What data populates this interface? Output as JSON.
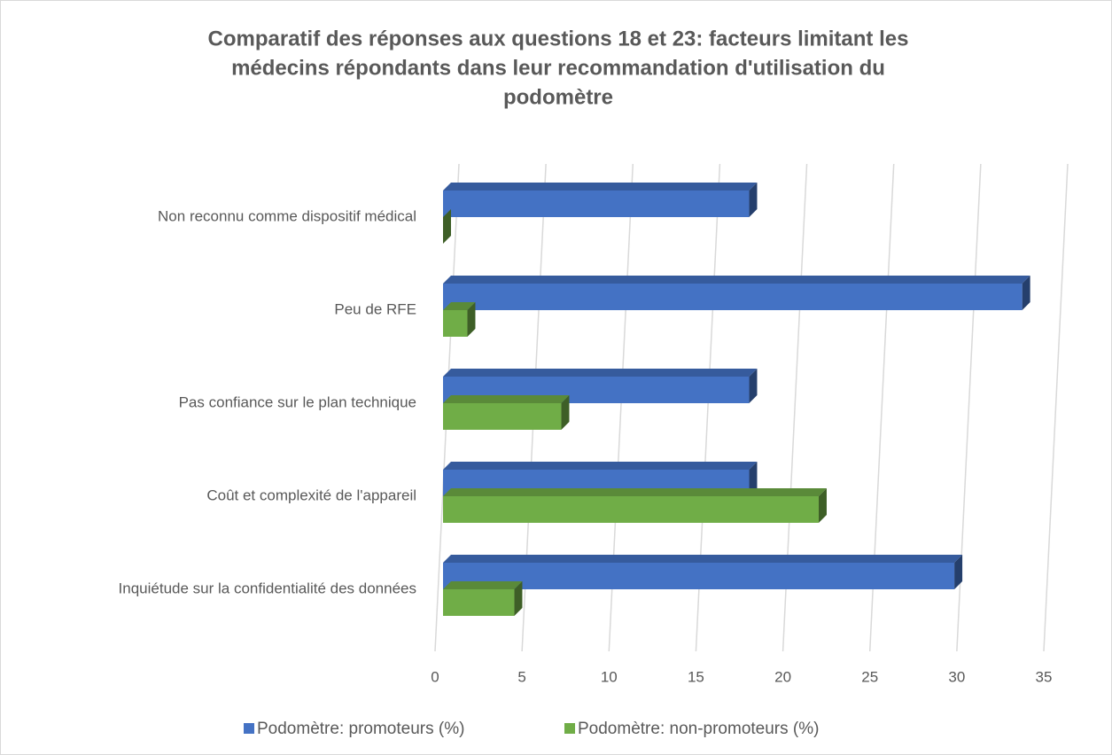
{
  "chart_data": {
    "type": "bar3d_horizontal",
    "title": [
      "Comparatif des réponses aux questions 18 et 23: facteurs limitant les",
      "médecins répondants dans leur recommandation d'utilisation du",
      "podomètre"
    ],
    "categories": [
      "Non reconnu comme dispositif médical",
      "Peu de RFE",
      "Pas confiance sur le plan technique",
      "Coût et complexité de l'appareil",
      "Inquiétude sur la confidentialité des données"
    ],
    "series": [
      {
        "name": "Podomètre: promoteurs (%)",
        "color": "#4472c4",
        "values": [
          17.6,
          33.3,
          17.6,
          17.6,
          29.4
        ]
      },
      {
        "name": "Podomètre: non-promoteurs (%)",
        "color": "#70ad47",
        "values": [
          0,
          1.4,
          6.8,
          21.6,
          4.1
        ]
      }
    ],
    "xlim": [
      0,
      35
    ],
    "xticks": [
      0,
      5,
      10,
      15,
      20,
      25,
      30,
      35
    ],
    "grid": true,
    "legend": "bottom"
  }
}
